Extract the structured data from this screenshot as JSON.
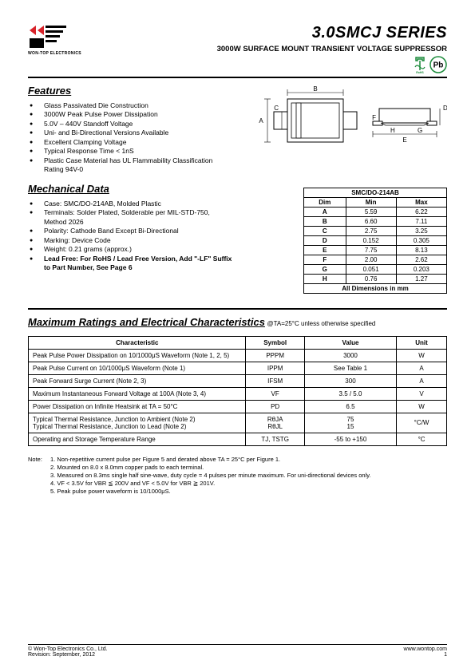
{
  "header": {
    "logo_text": "WON-TOP ELECTRONICS",
    "main_title": "3.0SMCJ SERIES",
    "sub_title": "3000W SURFACE MOUNT TRANSIENT VOLTAGE SUPPRESSOR",
    "logo_colors": {
      "red": "#d8232a",
      "black": "#000000"
    },
    "rohs_color": "#1a8a3a",
    "pb_border_color": "#1a8a3a",
    "pb_text": "Pb"
  },
  "features": {
    "heading": "Features",
    "items": [
      "Glass Passivated Die Construction",
      "3000W Peak Pulse Power Dissipation",
      "5.0V – 440V Standoff Voltage",
      "Uni- and Bi-Directional Versions Available",
      "Excellent Clamping Voltage",
      "Typical Response Time < 1nS",
      "Plastic Case Material has UL Flammability Classification Rating 94V-0"
    ]
  },
  "mechanical": {
    "heading": "Mechanical Data",
    "items": [
      "Case: SMC/DO-214AB, Molded Plastic",
      "Terminals: Solder Plated, Solderable per MIL-STD-750, Method 2026",
      "Polarity: Cathode Band Except Bi-Directional",
      "Marking: Device Code",
      "Weight: 0.21 grams (approx.)",
      "Lead Free: For RoHS / Lead Free Version, Add \"-LF\" Suffix to Part Number, See Page 6"
    ]
  },
  "package_drawing": {
    "labels": [
      "A",
      "B",
      "C",
      "D",
      "E",
      "F",
      "G",
      "H"
    ],
    "stroke": "#000000",
    "fill": "#ffffff"
  },
  "dim_table": {
    "caption": "SMC/DO-214AB",
    "headers": [
      "Dim",
      "Min",
      "Max"
    ],
    "rows": [
      [
        "A",
        "5.59",
        "6.22"
      ],
      [
        "B",
        "6.60",
        "7.11"
      ],
      [
        "C",
        "2.75",
        "3.25"
      ],
      [
        "D",
        "0.152",
        "0.305"
      ],
      [
        "E",
        "7.75",
        "8.13"
      ],
      [
        "F",
        "2.00",
        "2.62"
      ],
      [
        "G",
        "0.051",
        "0.203"
      ],
      [
        "H",
        "0.76",
        "1.27"
      ]
    ],
    "footer": "All Dimensions in mm"
  },
  "ratings": {
    "heading": "Maximum Ratings and Electrical Characteristics",
    "condition": "@TA=25°C unless otherwise specified",
    "headers": [
      "Characteristic",
      "Symbol",
      "Value",
      "Unit"
    ],
    "rows": [
      {
        "char": "Peak Pulse Power Dissipation on 10/1000μS Waveform (Note 1, 2, 5)",
        "sym": "PPPM",
        "val": "3000",
        "unit": "W"
      },
      {
        "char": "Peak Pulse Current on 10/1000μS Waveform (Note 1)",
        "sym": "IPPM",
        "val": "See Table 1",
        "unit": "A"
      },
      {
        "char": "Peak Forward Surge Current (Note 2, 3)",
        "sym": "IFSM",
        "val": "300",
        "unit": "A"
      },
      {
        "char": "Maximum Instantaneous Forward Voltage at 100A (Note 3, 4)",
        "sym": "VF",
        "val": "3.5 / 5.0",
        "unit": "V"
      },
      {
        "char": "Power Dissipation on Infinite Heatsink at TA = 50°C",
        "sym": "PD",
        "val": "6.5",
        "unit": "W"
      },
      {
        "char": "Typical Thermal Resistance, Junction to Ambient (Note 2)\nTypical Thermal Resistance, Junction to Lead (Note 2)",
        "sym": "RθJA\nRθJL",
        "val": "75\n15",
        "unit": "°C/W"
      },
      {
        "char": "Operating and Storage Temperature Range",
        "sym": "TJ, TSTG",
        "val": "-55 to +150",
        "unit": "°C"
      }
    ]
  },
  "notes": {
    "label": "Note:",
    "items": [
      "1. Non-repetitive current pulse per Figure 5 and derated above TA = 25°C per Figure 1.",
      "2. Mounted on 8.0 x 8.0mm copper pads to each terminal.",
      "3. Measured on 8.3ms single half sine-wave, duty cycle = 4 pulses per minute maximum. For uni-directional devices only.",
      "4. VF < 3.5V for VBR ≦ 200V and VF < 5.0V for VBR ≧ 201V.",
      "5. Peak pulse power waveform is 10/1000μS."
    ]
  },
  "footer": {
    "company": "© Won-Top Electronics Co., Ltd.",
    "revision": "Revision: September, 2012",
    "url": "www.wontop.com",
    "page": "1"
  }
}
